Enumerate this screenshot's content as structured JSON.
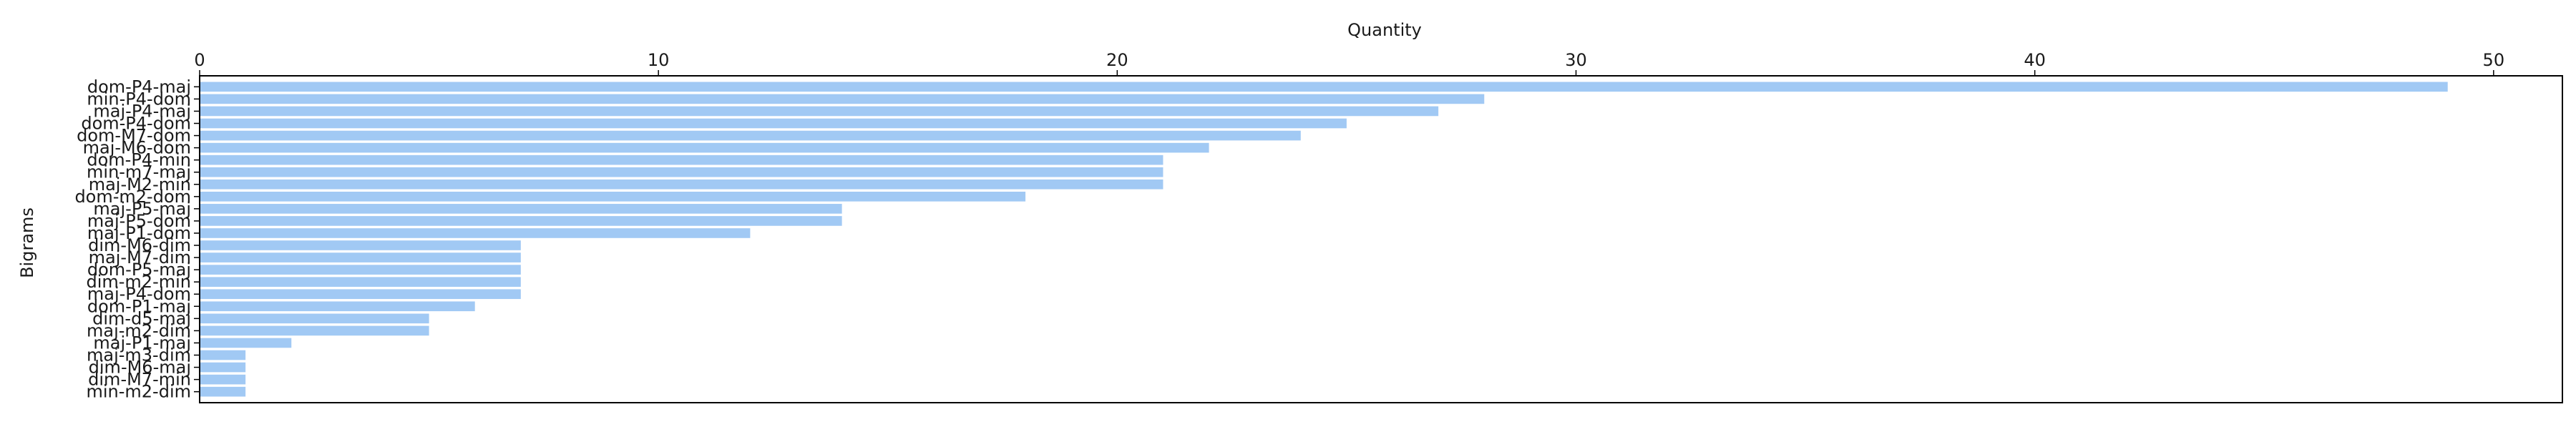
{
  "chart_data": {
    "type": "bar",
    "orientation": "horizontal",
    "title": "",
    "xlabel": "Quantity",
    "ylabel": "Bigrams",
    "x_axis_position": "top",
    "xlim": [
      0,
      51.5
    ],
    "xticks": [
      0,
      10,
      20,
      30,
      40,
      50
    ],
    "xtick_labels": [
      "0",
      "10",
      "20",
      "30",
      "40",
      "50"
    ],
    "grid": false,
    "legend": "none",
    "bar_color": "#a1c9f4",
    "categories": [
      "dom-P4-maj",
      "min-P4-dom",
      "maj-P4-maj",
      "dom-P4-dom",
      "dom-M7-dom",
      "maj-M6-dom",
      "dom-P4-min",
      "min-m7-maj",
      "maj-M2-min",
      "dom-m2-dom",
      "maj-P5-maj",
      "maj-P5-dom",
      "maj-P1-dom",
      "dim-M6-dim",
      "maj-M7-dim",
      "dom-P5-maj",
      "dim-m2-min",
      "maj-P4-dom",
      "dom-P1-maj",
      "dim-d5-maj",
      "maj-m2-dim",
      "maj-P1-maj",
      "maj-m3-dim",
      "dim-M6-maj",
      "dim-M7-min",
      "min-m2-dim"
    ],
    "values": [
      49,
      28,
      27,
      25,
      24,
      22,
      21,
      21,
      21,
      18,
      14,
      14,
      12,
      7,
      7,
      7,
      7,
      7,
      6,
      5,
      5,
      2,
      1,
      1,
      1,
      1
    ]
  }
}
